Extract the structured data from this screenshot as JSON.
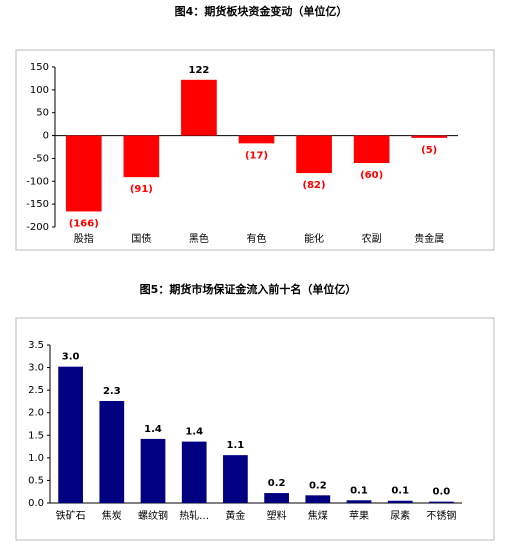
{
  "chart_data": [
    {
      "type": "bar",
      "title": "图4：期货板块资金变动（单位亿）",
      "categories": [
        "股指",
        "国债",
        "黑色",
        "有色",
        "能化",
        "农副",
        "贵金属"
      ],
      "values": [
        -166,
        -91,
        122,
        -17,
        -82,
        -60,
        -5
      ],
      "value_labels": [
        "(166)",
        "(91)",
        "122",
        "(17)",
        "(82)",
        "(60)",
        "(5)"
      ],
      "color": "#ff0000",
      "ylim": [
        -200,
        150
      ],
      "yticks": [
        -200,
        -150,
        -100,
        -50,
        0,
        50,
        100,
        150
      ]
    },
    {
      "type": "bar",
      "title": "图5：期货市场保证金流入前十名（单位亿）",
      "categories": [
        "铁矿石",
        "焦炭",
        "螺纹钢",
        "热轧…",
        "黄金",
        "塑料",
        "焦煤",
        "苹果",
        "尿素",
        "不锈钢"
      ],
      "values": [
        3.02,
        2.26,
        1.42,
        1.36,
        1.06,
        0.22,
        0.17,
        0.06,
        0.05,
        0.03
      ],
      "value_labels": [
        "3.0",
        "2.3",
        "1.4",
        "1.4",
        "1.1",
        "0.2",
        "0.2",
        "0.1",
        "0.1",
        "0.0"
      ],
      "color": "#000080",
      "ylim": [
        0,
        3.5
      ],
      "yticks": [
        {
          "value": 0,
          "label": "0.0"
        },
        0.5,
        {
          "value": 1,
          "label": "1.0"
        },
        1.5,
        {
          "value": 2,
          "label": "2.0"
        },
        2.5,
        {
          "value": 3,
          "label": "3.0"
        },
        3.5
      ]
    }
  ]
}
